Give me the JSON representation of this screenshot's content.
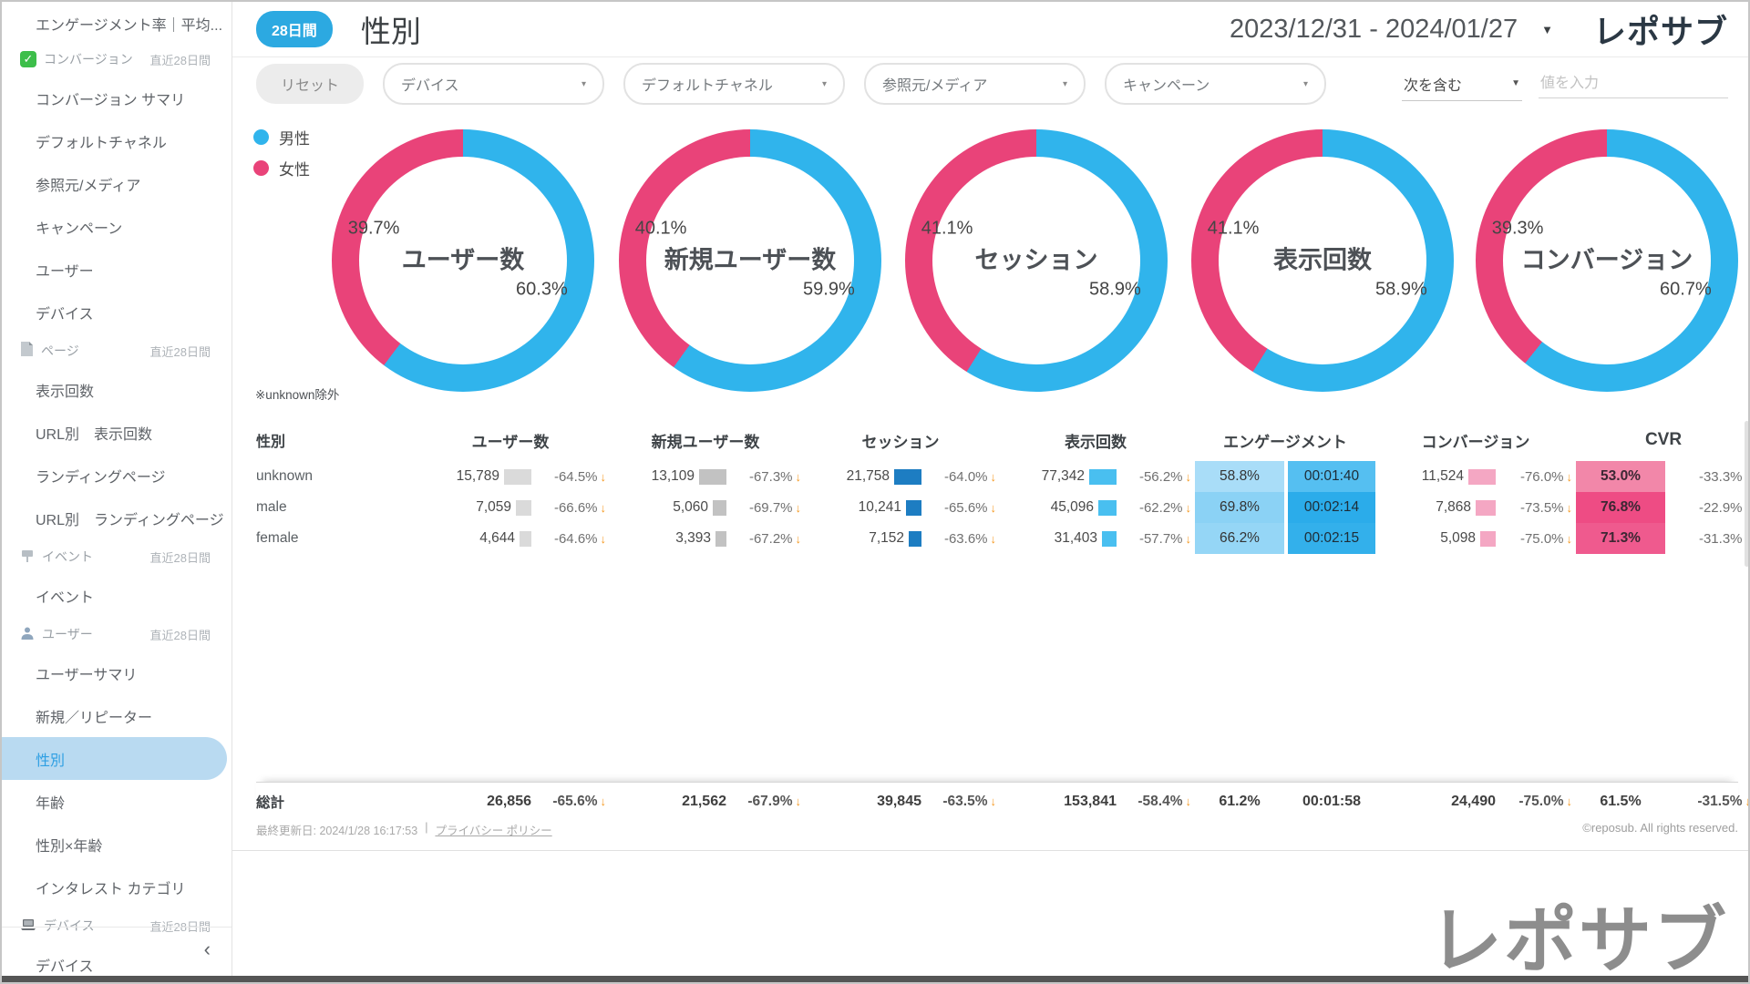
{
  "header": {
    "badge": "28日間",
    "title": "性別",
    "date_range": "2023/12/31 - 2024/01/27",
    "logo": "レポサブ"
  },
  "filters": {
    "reset_label": "リセット",
    "dropdowns": [
      "デバイス",
      "デフォルトチャネル",
      "参照元/メディア",
      "キャンペーン"
    ],
    "match_label": "次を含む",
    "value_placeholder": "値を入力"
  },
  "legend": [
    {
      "label": "男性",
      "color": "#30B4EC"
    },
    {
      "label": "女性",
      "color": "#E94379"
    }
  ],
  "chart_note": "※unknown除外",
  "chart_data": [
    {
      "type": "pie",
      "title": "ユーザー数",
      "labels": [
        "男性",
        "女性"
      ],
      "values": [
        60.3,
        39.7
      ],
      "colors": [
        "#30B4EC",
        "#E94379"
      ]
    },
    {
      "type": "pie",
      "title": "新規ユーザー数",
      "labels": [
        "男性",
        "女性"
      ],
      "values": [
        59.9,
        40.1
      ],
      "colors": [
        "#30B4EC",
        "#E94379"
      ]
    },
    {
      "type": "pie",
      "title": "セッション",
      "labels": [
        "男性",
        "女性"
      ],
      "values": [
        58.9,
        41.1
      ],
      "colors": [
        "#30B4EC",
        "#E94379"
      ]
    },
    {
      "type": "pie",
      "title": "表示回数",
      "labels": [
        "男性",
        "女性"
      ],
      "values": [
        58.9,
        41.1
      ],
      "colors": [
        "#30B4EC",
        "#E94379"
      ]
    },
    {
      "type": "pie",
      "title": "コンバージョン",
      "labels": [
        "男性",
        "女性"
      ],
      "values": [
        60.7,
        39.3
      ],
      "colors": [
        "#30B4EC",
        "#E94379"
      ]
    }
  ],
  "table": {
    "headers": {
      "gender": "性別",
      "users": "ユーザー数",
      "new_users": "新規ユーザー数",
      "sessions": "セッション",
      "views": "表示回数",
      "engagement": "エンゲージメント",
      "conversions": "コンバージョン",
      "cvr": "CVR"
    },
    "bar_colors": {
      "users": "#DADADA",
      "new_users": "#C2C2C2",
      "sessions": "#1D7DC2",
      "views": "#49BFF0",
      "conversions": "#F4A7C3"
    },
    "rows": [
      {
        "gender": "unknown",
        "users": {
          "value": "15,789",
          "change": "-64.5%"
        },
        "new_users": {
          "value": "13,109",
          "change": "-67.3%"
        },
        "sessions": {
          "value": "21,758",
          "change": "-64.0%"
        },
        "views": {
          "value": "77,342",
          "change": "-56.2%"
        },
        "eng_rate": {
          "value": "58.8%",
          "bg": "#A9DDF8"
        },
        "eng_time": {
          "value": "00:01:40",
          "bg": "#55BFF1"
        },
        "conversions": {
          "value": "11,524",
          "change": "-76.0%"
        },
        "cvr": {
          "value": "53.0%",
          "bg": "#F287A9"
        },
        "cvr_change": "-33.3%"
      },
      {
        "gender": "male",
        "users": {
          "value": "7,059",
          "change": "-66.6%"
        },
        "new_users": {
          "value": "5,060",
          "change": "-69.7%"
        },
        "sessions": {
          "value": "10,241",
          "change": "-65.6%"
        },
        "views": {
          "value": "45,096",
          "change": "-62.2%"
        },
        "eng_rate": {
          "value": "69.8%",
          "bg": "#8BD2F5"
        },
        "eng_time": {
          "value": "00:02:14",
          "bg": "#2BACEA"
        },
        "conversions": {
          "value": "7,868",
          "change": "-73.5%"
        },
        "cvr": {
          "value": "76.8%",
          "bg": "#EE4C84"
        },
        "cvr_change": "-22.9%"
      },
      {
        "gender": "female",
        "users": {
          "value": "4,644",
          "change": "-64.6%"
        },
        "new_users": {
          "value": "3,393",
          "change": "-67.2%"
        },
        "sessions": {
          "value": "7,152",
          "change": "-63.6%"
        },
        "views": {
          "value": "31,403",
          "change": "-57.7%"
        },
        "eng_rate": {
          "value": "66.2%",
          "bg": "#95D6F6"
        },
        "eng_time": {
          "value": "00:02:15",
          "bg": "#33B0EB"
        },
        "conversions": {
          "value": "5,098",
          "change": "-75.0%"
        },
        "cvr": {
          "value": "71.3%",
          "bg": "#EF5A8E"
        },
        "cvr_change": "-31.3%"
      }
    ],
    "totals": {
      "label": "総計",
      "users": {
        "value": "26,856",
        "change": "-65.6%"
      },
      "new_users": {
        "value": "21,562",
        "change": "-67.9%"
      },
      "sessions": {
        "value": "39,845",
        "change": "-63.5%"
      },
      "views": {
        "value": "153,841",
        "change": "-58.4%"
      },
      "eng_rate": "61.2%",
      "eng_time": "00:01:58",
      "conversions": {
        "value": "24,490",
        "change": "-75.0%"
      },
      "cvr": "61.5%",
      "cvr_change": "-31.5%"
    }
  },
  "footer": {
    "updated": "最終更新日: 2024/1/28 16:17:53",
    "separator": "|",
    "privacy": "プライバシー ポリシー",
    "copyright": "©reposub. All rights reserved.",
    "bottom_logo": "レポサブ"
  },
  "sidebar": {
    "collapse": "‹",
    "items": [
      {
        "type": "item",
        "label": "エンゲージメント率｜平均...",
        "first": true
      },
      {
        "type": "section",
        "icon": "conversion-checkbox-icon",
        "label": "コンバージョン",
        "period": "直近28日間"
      },
      {
        "type": "item",
        "label": "コンバージョン サマリ"
      },
      {
        "type": "item",
        "label": "デフォルトチャネル"
      },
      {
        "type": "item",
        "label": "参照元/メディア"
      },
      {
        "type": "item",
        "label": "キャンペーン"
      },
      {
        "type": "item",
        "label": "ユーザー"
      },
      {
        "type": "item",
        "label": "デバイス"
      },
      {
        "type": "section",
        "icon": "page-icon",
        "label": "ページ",
        "period": "直近28日間"
      },
      {
        "type": "item",
        "label": "表示回数"
      },
      {
        "type": "item",
        "label": "URL別　表示回数"
      },
      {
        "type": "item",
        "label": "ランディングページ"
      },
      {
        "type": "item",
        "label": "URL別　ランディングページ"
      },
      {
        "type": "section",
        "icon": "event-icon",
        "label": "イベント",
        "period": "直近28日間"
      },
      {
        "type": "item",
        "label": "イベント"
      },
      {
        "type": "section",
        "icon": "user-icon",
        "label": "ユーザー",
        "period": "直近28日間"
      },
      {
        "type": "item",
        "label": "ユーザーサマリ"
      },
      {
        "type": "item",
        "label": "新規／リピーター"
      },
      {
        "type": "item",
        "label": "性別",
        "active": true
      },
      {
        "type": "item",
        "label": "年齢"
      },
      {
        "type": "item",
        "label": "性別×年齢"
      },
      {
        "type": "item",
        "label": "インタレスト カテゴリ"
      },
      {
        "type": "section",
        "icon": "device-icon",
        "label": "デバイス",
        "period": "直近28日間"
      },
      {
        "type": "item",
        "label": "デバイス"
      }
    ]
  },
  "watermark": "reposub",
  "colors": {
    "male_blue": "#30B4EC",
    "female_pink": "#E94379",
    "badge_blue": "#2CA9E1",
    "active_item_bg": "#B9DAF1",
    "active_item_text": "#2E9FE3",
    "arrow_orange": "#F59A23",
    "logo_navy": "#2B3844"
  }
}
